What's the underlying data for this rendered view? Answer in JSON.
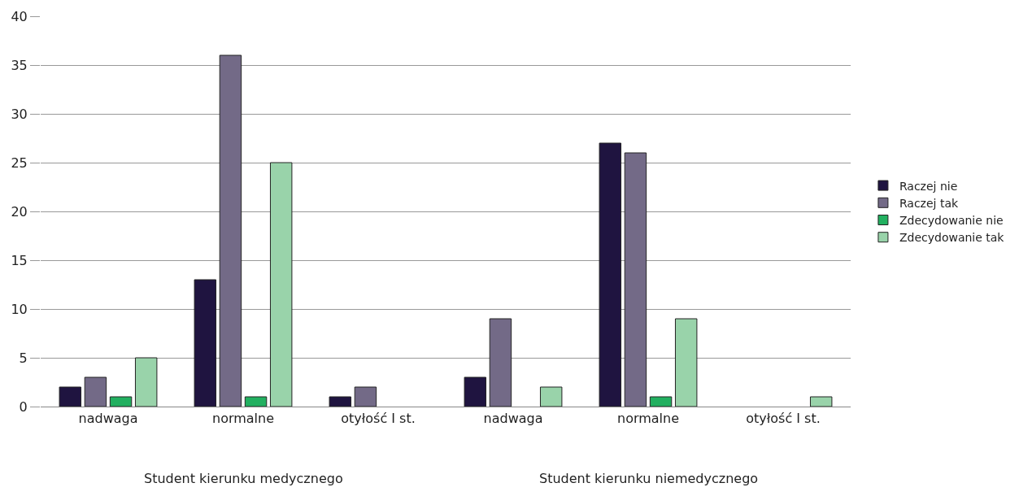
{
  "chart_data": {
    "type": "bar",
    "categories": [
      "nadwaga",
      "normalne",
      "otyłość I st.",
      "nadwaga",
      "normalne",
      "otyłość I st."
    ],
    "series": [
      {
        "name": "Raczej nie",
        "color": "#1f1440",
        "values": [
          2,
          13,
          1,
          3,
          27,
          null
        ]
      },
      {
        "name": "Raczej tak",
        "color": "#736a87",
        "values": [
          3,
          36,
          2,
          9,
          26,
          null
        ]
      },
      {
        "name": "Zdecydowanie nie",
        "color": "#22b060",
        "values": [
          1,
          1,
          null,
          null,
          1,
          null
        ]
      },
      {
        "name": "Zdecydowanie tak",
        "color": "#99d3aa",
        "values": [
          5,
          25,
          null,
          2,
          9,
          1
        ]
      }
    ],
    "ylim": [
      0,
      40
    ],
    "yticks": [
      0,
      5,
      10,
      15,
      20,
      25,
      30,
      35,
      40
    ],
    "grid": "y",
    "legend": "right",
    "annotations": [
      "Student kierunku medycznego",
      "Student kierunku niemedycznego"
    ]
  }
}
